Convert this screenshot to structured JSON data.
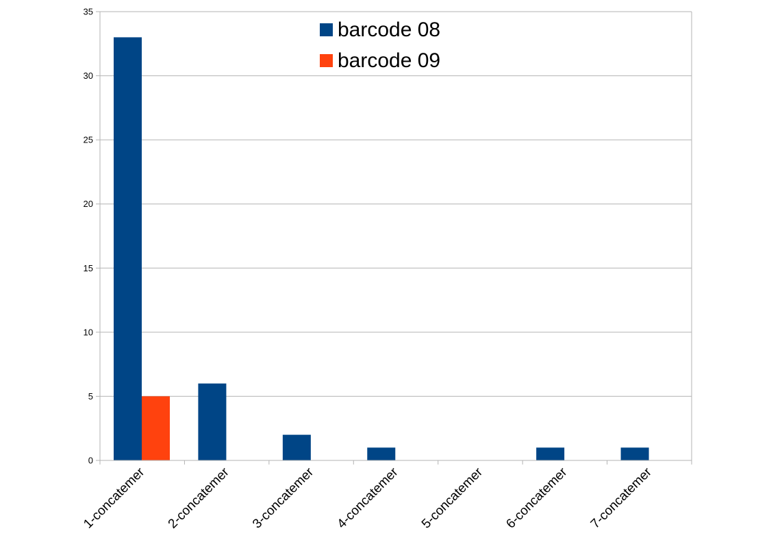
{
  "chart_data": {
    "type": "bar",
    "categories": [
      "1-concatemer",
      "2-concatemer",
      "3-concatemer",
      "4-concatemer",
      "5-concatemer",
      "6-concatemer",
      "7-concatemer"
    ],
    "series": [
      {
        "name": "barcode 08",
        "color": "#004586",
        "values": [
          33,
          6,
          2,
          1,
          0,
          1,
          1
        ]
      },
      {
        "name": "barcode 09",
        "color": "#ff420e",
        "values": [
          5,
          0,
          0,
          0,
          0,
          0,
          0
        ]
      }
    ],
    "title": "",
    "xlabel": "",
    "ylabel": "",
    "ylim": [
      0,
      35
    ],
    "yticks": [
      0,
      5,
      10,
      15,
      20,
      25,
      30,
      35
    ],
    "grid": true,
    "legend_position": "top-center"
  }
}
